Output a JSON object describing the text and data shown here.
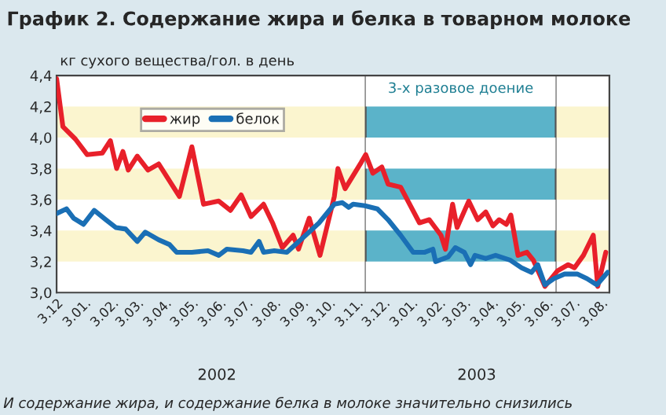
{
  "chart_data": {
    "type": "line",
    "title": "График 2. Содержание жира и белка в товарном молоке",
    "ylabel": "кг сухого вещества/гол. в день",
    "annotations": [
      "2002",
      "2003",
      "И содержание жира, и содержание белка в молоке значительно снизились"
    ],
    "series": [
      {
        "name": "жир",
        "color": "#e8202a",
        "x": [
          "2001-12-03",
          "2001-12-10",
          "2001-12-24",
          "2002-01-06",
          "2002-01-23",
          "2002-02-01",
          "2002-02-08",
          "2002-02-15",
          "2002-02-21",
          "2002-03-03",
          "2002-03-15",
          "2002-03-27",
          "2002-04-19",
          "2002-05-03",
          "2002-05-16",
          "2002-06-02",
          "2002-06-15",
          "2002-06-27",
          "2002-07-08",
          "2002-07-22",
          "2002-08-01",
          "2002-08-12",
          "2002-08-24",
          "2002-08-30",
          "2002-09-11",
          "2002-09-23",
          "2002-10-09",
          "2002-10-13",
          "2002-10-21",
          "2002-11-08",
          "2002-11-13",
          "2002-11-21",
          "2002-12-01",
          "2002-12-08",
          "2002-12-22",
          "2003-01-12",
          "2003-01-23",
          "2003-02-05",
          "2003-02-10",
          "2003-02-18",
          "2003-02-23",
          "2003-03-08",
          "2003-03-18",
          "2003-03-27",
          "2003-04-04",
          "2003-04-11",
          "2003-04-19",
          "2003-04-24",
          "2003-05-02",
          "2003-05-12",
          "2003-05-19",
          "2003-06-01",
          "2003-06-15",
          "2003-06-27",
          "2003-07-04",
          "2003-07-14",
          "2003-07-25",
          "2003-07-30",
          "2003-08-08"
        ],
        "values": [
          4.38,
          4.07,
          3.99,
          3.89,
          3.9,
          3.98,
          3.8,
          3.91,
          3.79,
          3.88,
          3.79,
          3.83,
          3.62,
          3.94,
          3.57,
          3.59,
          3.53,
          3.63,
          3.49,
          3.57,
          3.45,
          3.29,
          3.37,
          3.28,
          3.48,
          3.24,
          3.62,
          3.8,
          3.67,
          3.84,
          3.89,
          3.77,
          3.81,
          3.7,
          3.68,
          3.45,
          3.47,
          3.37,
          3.28,
          3.57,
          3.42,
          3.59,
          3.47,
          3.52,
          3.43,
          3.47,
          3.44,
          3.5,
          3.24,
          3.26,
          3.21,
          3.04,
          3.14,
          3.18,
          3.16,
          3.24,
          3.37,
          3.04,
          3.26
        ]
      },
      {
        "name": "белок",
        "color": "#1a6fb5",
        "x": [
          "2001-12-03",
          "2001-12-14",
          "2001-12-22",
          "2002-01-02",
          "2002-01-14",
          "2002-01-27",
          "2002-02-07",
          "2002-02-18",
          "2002-03-03",
          "2002-03-12",
          "2002-03-27",
          "2002-04-08",
          "2002-04-16",
          "2002-05-03",
          "2002-05-21",
          "2002-06-02",
          "2002-06-11",
          "2002-06-29",
          "2002-07-08",
          "2002-07-17",
          "2002-07-22",
          "2002-08-03",
          "2002-08-17",
          "2002-09-09",
          "2002-09-22",
          "2002-10-09",
          "2002-10-18",
          "2002-10-25",
          "2002-10-30",
          "2002-11-12",
          "2002-11-26",
          "2002-12-08",
          "2002-12-22",
          "2003-01-05",
          "2003-01-18",
          "2003-01-27",
          "2003-01-30",
          "2003-02-13",
          "2003-02-21",
          "2003-03-03",
          "2003-03-10",
          "2003-03-15",
          "2003-03-27",
          "2003-04-07",
          "2003-04-23",
          "2003-05-06",
          "2003-05-17",
          "2003-05-24",
          "2003-06-01",
          "2003-06-11",
          "2003-06-23",
          "2003-07-07",
          "2003-07-18",
          "2003-07-29",
          "2003-08-10"
        ],
        "values": [
          3.51,
          3.54,
          3.48,
          3.44,
          3.53,
          3.47,
          3.42,
          3.41,
          3.33,
          3.39,
          3.34,
          3.31,
          3.26,
          3.26,
          3.27,
          3.24,
          3.28,
          3.27,
          3.26,
          3.33,
          3.26,
          3.27,
          3.26,
          3.38,
          3.45,
          3.57,
          3.58,
          3.55,
          3.57,
          3.56,
          3.54,
          3.47,
          3.37,
          3.26,
          3.26,
          3.28,
          3.2,
          3.23,
          3.29,
          3.26,
          3.18,
          3.24,
          3.22,
          3.24,
          3.21,
          3.16,
          3.13,
          3.18,
          3.05,
          3.09,
          3.12,
          3.12,
          3.09,
          3.05,
          3.13
        ]
      }
    ],
    "xlim": [
      "2001-12-03",
      "2003-08-12"
    ],
    "xticks": [
      {
        "value": "2001-12-03",
        "label": "3.12"
      },
      {
        "value": "2002-01-03",
        "label": "3.01."
      },
      {
        "value": "2002-02-03",
        "label": "3.02."
      },
      {
        "value": "2002-03-03",
        "label": "3.03."
      },
      {
        "value": "2002-04-03",
        "label": "3.04."
      },
      {
        "value": "2002-05-03",
        "label": "3.05."
      },
      {
        "value": "2002-06-03",
        "label": "3.06."
      },
      {
        "value": "2002-07-03",
        "label": "3.07."
      },
      {
        "value": "2002-08-03",
        "label": "3.08."
      },
      {
        "value": "2002-09-03",
        "label": "3.09."
      },
      {
        "value": "2002-10-03",
        "label": "3.10."
      },
      {
        "value": "2002-11-03",
        "label": "3.11."
      },
      {
        "value": "2002-12-03",
        "label": "3.12."
      },
      {
        "value": "2003-01-03",
        "label": "3.01."
      },
      {
        "value": "2003-02-03",
        "label": "3.02."
      },
      {
        "value": "2003-03-03",
        "label": "3.03."
      },
      {
        "value": "2003-04-03",
        "label": "3.04."
      },
      {
        "value": "2003-05-03",
        "label": "3.05."
      },
      {
        "value": "2003-06-03",
        "label": "3.06."
      },
      {
        "value": "2003-07-03",
        "label": "3.07."
      },
      {
        "value": "2003-08-03",
        "label": "3.08."
      }
    ],
    "ylim": [
      3.0,
      4.4
    ],
    "yticks": [
      {
        "value": 3.0,
        "label": "3,0"
      },
      {
        "value": 3.2,
        "label": "3,2"
      },
      {
        "value": 3.4,
        "label": "3,4"
      },
      {
        "value": 3.6,
        "label": "3,6"
      },
      {
        "value": 3.8,
        "label": "3,8"
      },
      {
        "value": 4.0,
        "label": "4,0"
      },
      {
        "value": 4.2,
        "label": "4,2"
      },
      {
        "value": 4.4,
        "label": "4,4"
      }
    ],
    "bands": [
      {
        "axis": "x",
        "from": "2002-11-13",
        "to": "2003-06-13",
        "label": "3-х разовое доение",
        "color": "#5bb3c9"
      }
    ],
    "legend": "top left",
    "grid": false,
    "line_style": "solid",
    "marker": "none"
  }
}
